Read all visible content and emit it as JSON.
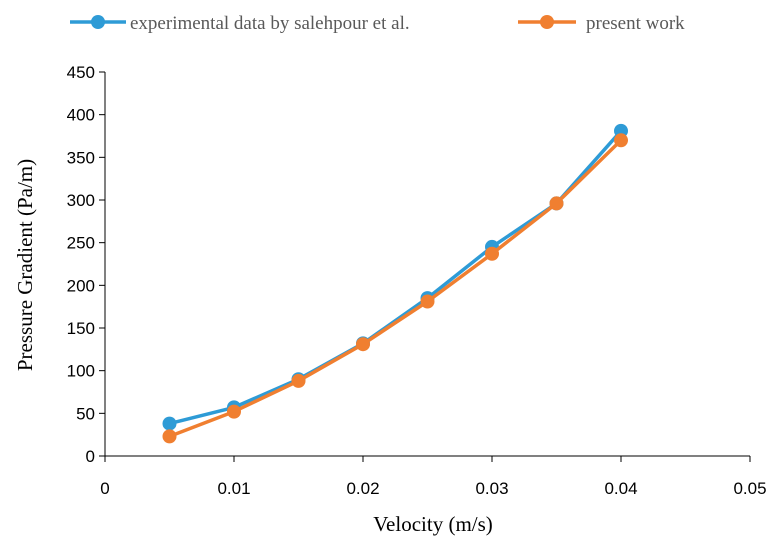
{
  "chart_data": {
    "type": "line",
    "title": "",
    "xlabel": "Velocity (m/s)",
    "ylabel": "Pressure Gradient (Pa/m)",
    "xlim": [
      0,
      0.05
    ],
    "ylim": [
      0,
      450
    ],
    "x_ticks": [
      0,
      0.01,
      0.02,
      0.03,
      0.04,
      0.05
    ],
    "x_tick_labels": [
      "0",
      "0.01",
      "0.02",
      "0.03",
      "0.04",
      "0.05"
    ],
    "y_ticks": [
      0,
      50,
      100,
      150,
      200,
      250,
      300,
      350,
      400,
      450
    ],
    "y_tick_labels": [
      "0",
      "50",
      "100",
      "150",
      "200",
      "250",
      "300",
      "350",
      "400",
      "450"
    ],
    "grid": false,
    "legend_position": "top",
    "series": [
      {
        "name": "experimental data by salehpour et al.",
        "color": "#2E9BD6",
        "x": [
          0.005,
          0.01,
          0.015,
          0.02,
          0.025,
          0.03,
          0.035,
          0.04
        ],
        "y": [
          38,
          57,
          90,
          132,
          185,
          245,
          296,
          381
        ]
      },
      {
        "name": "present work",
        "color": "#F07F30",
        "x": [
          0.005,
          0.01,
          0.015,
          0.02,
          0.025,
          0.03,
          0.035,
          0.04
        ],
        "y": [
          23,
          52,
          88,
          131,
          181,
          237,
          296,
          370
        ]
      }
    ]
  }
}
